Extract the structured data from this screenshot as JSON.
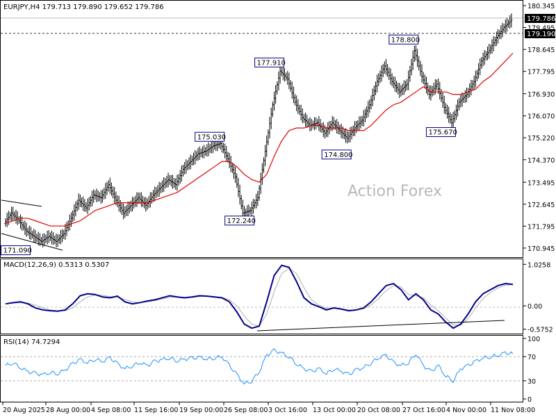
{
  "chart_data": {
    "type": "line",
    "symbol": "EURJPY",
    "timeframe": "H4",
    "ohlc_label": "EURJPY,H4  179.713 179.890 179.652 179.786",
    "watermark": "Action Forex",
    "price_panel": {
      "ylim": [
        170.7,
        180.4
      ],
      "y_ticks": [
        "180.345",
        "179.495",
        "178.645",
        "177.795",
        "176.930",
        "176.070",
        "175.220",
        "174.370",
        "173.495",
        "172.645",
        "171.795",
        "170.945"
      ],
      "last_price": "179.786",
      "support_line": "179.190",
      "annotations": [
        {
          "label": "171.090",
          "value": 171.09
        },
        {
          "label": "175.030",
          "value": 175.03
        },
        {
          "label": "172.240",
          "value": 172.24
        },
        {
          "label": "177.910",
          "value": 177.91
        },
        {
          "label": "174.800",
          "value": 174.8
        },
        {
          "label": "178.800",
          "value": 178.8
        },
        {
          "label": "175.670",
          "value": 175.67
        }
      ],
      "close_series": [
        171.9,
        172.3,
        172.0,
        171.6,
        171.4,
        171.2,
        171.4,
        171.2,
        171.5,
        172.1,
        172.8,
        172.5,
        173.0,
        172.9,
        173.4,
        172.8,
        172.3,
        172.6,
        172.9,
        172.6,
        173.0,
        173.3,
        173.6,
        173.4,
        174.0,
        174.3,
        174.6,
        174.7,
        174.9,
        175.0,
        174.4,
        173.7,
        172.3,
        172.4,
        172.9,
        174.7,
        176.5,
        177.8,
        177.5,
        176.6,
        176.0,
        175.7,
        175.8,
        175.4,
        175.8,
        175.5,
        175.2,
        175.6,
        175.9,
        176.5,
        177.4,
        178.0,
        177.4,
        177.0,
        177.3,
        178.6,
        177.6,
        176.9,
        177.3,
        176.4,
        175.8,
        176.6,
        176.9,
        177.4,
        178.2,
        178.6,
        179.1,
        179.5,
        179.786
      ],
      "ma_series": [
        171.9,
        172.0,
        172.1,
        172.1,
        172.0,
        171.9,
        171.8,
        171.8,
        171.8,
        171.9,
        172.0,
        172.2,
        172.4,
        172.5,
        172.6,
        172.7,
        172.7,
        172.7,
        172.7,
        172.7,
        172.8,
        172.9,
        173.0,
        173.1,
        173.3,
        173.5,
        173.7,
        173.9,
        174.1,
        174.3,
        174.3,
        174.1,
        173.8,
        173.6,
        173.5,
        173.8,
        174.5,
        175.1,
        175.5,
        175.6,
        175.6,
        175.7,
        175.7,
        175.6,
        175.6,
        175.6,
        175.5,
        175.5,
        175.5,
        175.7,
        176.0,
        176.3,
        176.5,
        176.6,
        176.8,
        177.0,
        177.2,
        177.0,
        177.0,
        177.0,
        176.9,
        176.9,
        177.0,
        177.1,
        177.4,
        177.6,
        177.9,
        178.2,
        178.5
      ]
    },
    "macd_panel": {
      "label": "MACD(12,26,9) 0.5313 0.5307",
      "ylim": [
        -0.65,
        1.1
      ],
      "y_ticks": [
        "1.0258",
        "0.00",
        "-0.5752"
      ],
      "macd_series": [
        0.05,
        0.08,
        0.1,
        0.05,
        -0.05,
        -0.1,
        -0.12,
        -0.13,
        -0.1,
        0.05,
        0.25,
        0.3,
        0.28,
        0.22,
        0.2,
        0.24,
        0.1,
        0.05,
        0.08,
        0.12,
        0.15,
        0.2,
        0.25,
        0.22,
        0.2,
        0.22,
        0.25,
        0.24,
        0.22,
        0.2,
        0.1,
        -0.15,
        -0.45,
        -0.55,
        -0.5,
        0.1,
        0.75,
        1.0,
        0.95,
        0.6,
        0.2,
        0.05,
        -0.02,
        -0.1,
        -0.05,
        -0.08,
        -0.12,
        -0.1,
        -0.05,
        0.1,
        0.3,
        0.5,
        0.55,
        0.4,
        0.15,
        0.3,
        0.15,
        -0.1,
        -0.2,
        -0.4,
        -0.55,
        -0.45,
        -0.2,
        0.1,
        0.3,
        0.4,
        0.5,
        0.55,
        0.53
      ],
      "signal_series": [
        0.06,
        0.07,
        0.08,
        0.07,
        0.02,
        -0.05,
        -0.1,
        -0.12,
        -0.12,
        -0.05,
        0.1,
        0.22,
        0.27,
        0.26,
        0.23,
        0.22,
        0.16,
        0.1,
        0.08,
        0.1,
        0.13,
        0.17,
        0.21,
        0.22,
        0.21,
        0.21,
        0.23,
        0.24,
        0.23,
        0.21,
        0.15,
        0.0,
        -0.25,
        -0.45,
        -0.5,
        -0.2,
        0.35,
        0.8,
        0.92,
        0.8,
        0.45,
        0.15,
        0.02,
        -0.06,
        -0.06,
        -0.07,
        -0.1,
        -0.1,
        -0.07,
        0.02,
        0.18,
        0.38,
        0.5,
        0.47,
        0.28,
        0.25,
        0.2,
        0.02,
        -0.12,
        -0.3,
        -0.47,
        -0.48,
        -0.32,
        -0.05,
        0.18,
        0.33,
        0.44,
        0.51,
        0.5307
      ]
    },
    "rsi_panel": {
      "label": "RSI(14) 74.7294",
      "ylim": [
        0,
        100
      ],
      "y_ticks": [
        "100",
        "70",
        "30",
        "0"
      ],
      "rsi_series": [
        55,
        60,
        52,
        45,
        42,
        40,
        44,
        42,
        48,
        58,
        65,
        60,
        66,
        62,
        68,
        58,
        50,
        55,
        60,
        55,
        62,
        65,
        68,
        63,
        66,
        67,
        69,
        66,
        68,
        70,
        55,
        40,
        25,
        30,
        45,
        72,
        80,
        76,
        70,
        58,
        50,
        45,
        50,
        42,
        50,
        46,
        40,
        48,
        52,
        60,
        68,
        72,
        60,
        55,
        60,
        75,
        55,
        45,
        55,
        38,
        30,
        50,
        55,
        62,
        68,
        70,
        72,
        76,
        74.7294
      ]
    },
    "x_tick_labels": [
      "20 Aug 2025",
      "28 Aug 00:00",
      "4 Sep 08:00",
      "11 Sep 16:00",
      "19 Sep 00:00",
      "26 Sep 08:00",
      "3 Oct 16:00",
      "13 Oct 00:00",
      "20 Oct 08:00",
      "27 Oct 16:00",
      "4 Nov 00:00",
      "11 Nov 08:00"
    ],
    "colors": {
      "price_bars": "#000000",
      "moving_average": "#e00000",
      "macd_line": "#00008b",
      "signal_line": "#b0b0b0",
      "annotation_border": "#00008b",
      "watermark": "#b8b8b8",
      "label_box": "#000000"
    }
  }
}
